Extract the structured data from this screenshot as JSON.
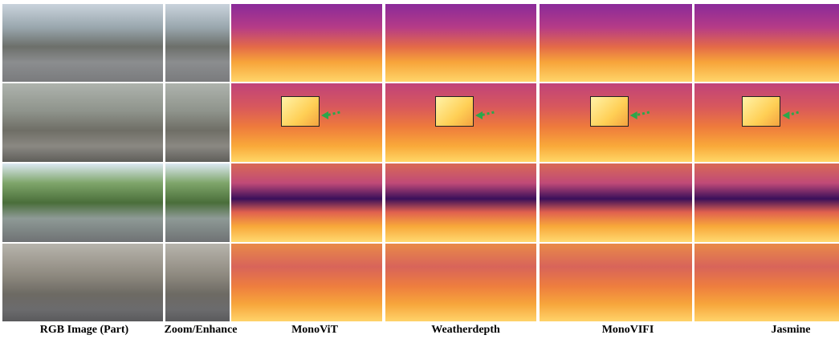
{
  "figure": {
    "columns": [
      "RGB Image (Part)",
      "Zoom/Enhance",
      "MonoViT",
      "Weatherdepth",
      "MonoVIFI",
      "Jasmine"
    ]
  }
}
